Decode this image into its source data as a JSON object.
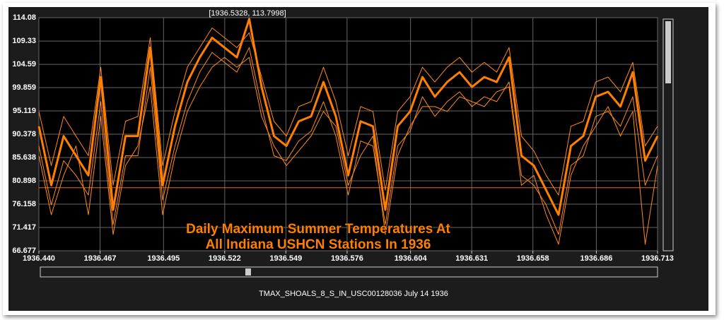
{
  "chart_data": {
    "type": "line",
    "title_lines": [
      "Daily Maximum Summer Temperatures At",
      "All Indiana USHCN Stations In 1936"
    ],
    "point_label": "[1936.5328, 113.7998]",
    "caption": "TMAX_SHOALS_8_S_IN_USC00128036 July 14 1936",
    "grid": true,
    "xlim": [
      1936.44,
      1936.713
    ],
    "ylim": [
      66.677,
      114.08
    ],
    "xticks": [
      {
        "value": 1936.44,
        "label": "1936.440"
      },
      1936.467,
      1936.495,
      1936.522,
      1936.549,
      1936.576,
      1936.604,
      1936.631,
      1936.658,
      1936.686,
      1936.713
    ],
    "yticks": [
      66.677,
      71.417,
      76.158,
      80.898,
      85.638,
      90.378,
      95.119,
      99.859,
      104.59,
      109.33,
      114.08
    ],
    "x": [
      1936.44,
      1936.44546,
      1936.45092,
      1936.45638,
      1936.46184,
      1936.4673,
      1936.47276,
      1936.47822,
      1936.48368,
      1936.48914,
      1936.4946,
      1936.50006,
      1936.50552,
      1936.51098,
      1936.51644,
      1936.5219,
      1936.52736,
      1936.53282,
      1936.53828,
      1936.54374,
      1936.5492,
      1936.55466,
      1936.56012,
      1936.56558,
      1936.57104,
      1936.5765,
      1936.58196,
      1936.58742,
      1936.59288,
      1936.59834,
      1936.6038,
      1936.60926,
      1936.61472,
      1936.62018,
      1936.62564,
      1936.6311,
      1936.63656,
      1936.64202,
      1936.64748,
      1936.65294,
      1936.6584,
      1936.66386,
      1936.66932,
      1936.67478,
      1936.68024,
      1936.6857,
      1936.69116,
      1936.69662,
      1936.70208,
      1936.70754,
      1936.713
    ],
    "series": [
      {
        "color": "#e0700a",
        "line_width": 1,
        "values": [
          79.5,
          79.5,
          79.5,
          79.5,
          79.5,
          79.5,
          79.5,
          79.5,
          79.5,
          79.5,
          79.5,
          79.5,
          79.5,
          79.5,
          79.5,
          79.5,
          79.5,
          79.5,
          79.5,
          79.5,
          79.5,
          79.5,
          79.5,
          79.5,
          79.5,
          79.5,
          79.5,
          79.5,
          79.5,
          79.5,
          79.5,
          79.5,
          79.5,
          79.5,
          79.5,
          79.5,
          79.5,
          79.5,
          79.5,
          79.5,
          79.5,
          79.5,
          79.5,
          79.5,
          79.5,
          79.5,
          79.5,
          79.5,
          79.5,
          79.5,
          79.5
        ]
      },
      {
        "color": "#ff8a1a",
        "line_width": 1,
        "values": [
          88,
          76,
          85,
          82,
          78,
          97,
          72,
          86,
          86,
          104,
          77,
          88,
          97,
          103,
          107,
          105,
          103,
          108,
          96,
          86,
          85,
          89,
          91,
          97,
          90,
          78,
          89,
          88,
          72,
          88,
          91,
          98,
          94,
          97,
          99,
          96,
          98,
          97,
          101,
          82,
          80,
          76,
          70,
          84,
          86,
          94,
          95,
          92,
          98,
          80,
          86
        ]
      },
      {
        "color": "#ff8a1a",
        "line_width": 1,
        "values": [
          95,
          84,
          94,
          90,
          86,
          104,
          80,
          93,
          94,
          110,
          84,
          95,
          104,
          108,
          112,
          110,
          108,
          111,
          102,
          93,
          90,
          96,
          97,
          104,
          97,
          86,
          96,
          95,
          79,
          95,
          98,
          104,
          101,
          104,
          106,
          103,
          105,
          103,
          108,
          90,
          87,
          82,
          78,
          92,
          93,
          101,
          102,
          99,
          105,
          88,
          92
        ]
      },
      {
        "color": "#ff8a1a",
        "line_width": 1,
        "values": [
          86,
          74,
          82,
          88,
          74,
          94,
          70,
          84,
          88,
          100,
          74,
          86,
          95,
          100,
          104,
          106,
          104,
          106,
          94,
          88,
          84,
          87,
          90,
          95,
          92,
          80,
          86,
          90,
          70,
          86,
          92,
          96,
          96,
          95,
          98,
          97,
          96,
          99,
          100,
          80,
          82,
          74,
          68,
          82,
          88,
          92,
          96,
          90,
          95,
          68,
          84
        ]
      },
      {
        "color": "#ff7f00",
        "line_width": 3,
        "values": [
          92,
          80,
          90,
          86,
          82,
          102,
          75,
          90,
          90,
          108,
          80,
          92,
          101,
          106,
          110,
          108,
          106,
          113.7998,
          100,
          90,
          88,
          93,
          94,
          101,
          94,
          82,
          93,
          92,
          75,
          92,
          95,
          102,
          98,
          101,
          103,
          100,
          102,
          101,
          106,
          86,
          84,
          79,
          74,
          88,
          90,
          98,
          99,
          96,
          103,
          85,
          90
        ]
      }
    ]
  }
}
